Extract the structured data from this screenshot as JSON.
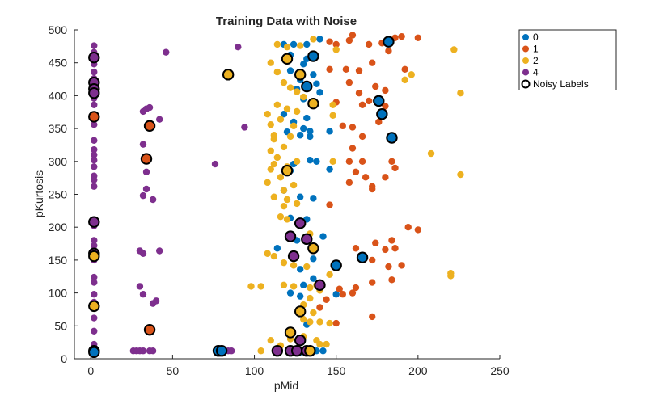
{
  "chart_data": {
    "type": "scatter",
    "title": "Training Data with Noise",
    "xlabel": "pMid",
    "ylabel": "pKurtosis",
    "xlim": [
      -10,
      250
    ],
    "ylim": [
      0,
      500
    ],
    "xticks": [
      0,
      50,
      100,
      150,
      200,
      250
    ],
    "yticks": [
      0,
      50,
      100,
      150,
      200,
      250,
      300,
      350,
      400,
      450,
      500
    ],
    "legend_position": "top-right",
    "grid": false,
    "series": [
      {
        "name": "0",
        "color": "#0072BD",
        "points": [
          [
            118,
            478
          ],
          [
            124,
            478
          ],
          [
            132,
            478
          ],
          [
            140,
            486
          ],
          [
            122,
            462
          ],
          [
            132,
            456
          ],
          [
            130,
            448
          ],
          [
            122,
            438
          ],
          [
            136,
            432
          ],
          [
            128,
            424
          ],
          [
            138,
            418
          ],
          [
            126,
            410
          ],
          [
            140,
            405
          ],
          [
            130,
            395
          ],
          [
            118,
            372
          ],
          [
            132,
            366
          ],
          [
            124,
            360
          ],
          [
            130,
            350
          ],
          [
            134,
            346
          ],
          [
            146,
            346
          ],
          [
            120,
            345
          ],
          [
            128,
            340
          ],
          [
            134,
            338
          ],
          [
            134,
            302
          ],
          [
            138,
            300
          ],
          [
            124,
            296
          ],
          [
            146,
            288
          ],
          [
            122,
            286
          ],
          [
            118,
            256
          ],
          [
            128,
            246
          ],
          [
            136,
            244
          ],
          [
            122,
            214
          ],
          [
            132,
            212
          ],
          [
            142,
            186
          ],
          [
            126,
            180
          ],
          [
            114,
            168
          ],
          [
            136,
            152
          ],
          [
            128,
            136
          ],
          [
            136,
            122
          ],
          [
            130,
            112
          ],
          [
            150,
            98
          ],
          [
            122,
            100
          ],
          [
            128,
            95
          ],
          [
            132,
            52
          ],
          [
            138,
            12
          ],
          [
            142,
            12
          ],
          [
            128,
            10
          ]
        ]
      },
      {
        "name": "1",
        "color": "#D95319",
        "points": [
          [
            160,
            492
          ],
          [
            146,
            482
          ],
          [
            150,
            478
          ],
          [
            158,
            484
          ],
          [
            170,
            478
          ],
          [
            186,
            488
          ],
          [
            178,
            480
          ],
          [
            200,
            488
          ],
          [
            146,
            440
          ],
          [
            156,
            440
          ],
          [
            164,
            438
          ],
          [
            172,
            450
          ],
          [
            190,
            490
          ],
          [
            182,
            468
          ],
          [
            174,
            414
          ],
          [
            180,
            408
          ],
          [
            158,
            420
          ],
          [
            164,
            404
          ],
          [
            170,
            392
          ],
          [
            180,
            384
          ],
          [
            192,
            440
          ],
          [
            166,
            386
          ],
          [
            160,
            352
          ],
          [
            176,
            360
          ],
          [
            166,
            338
          ],
          [
            150,
            390
          ],
          [
            154,
            354
          ],
          [
            160,
            320
          ],
          [
            166,
            300
          ],
          [
            158,
            300
          ],
          [
            162,
            284
          ],
          [
            168,
            276
          ],
          [
            180,
            276
          ],
          [
            186,
            290
          ],
          [
            184,
            300
          ],
          [
            158,
            268
          ],
          [
            172,
            262
          ],
          [
            172,
            258
          ],
          [
            146,
            234
          ],
          [
            200,
            196
          ],
          [
            194,
            200
          ],
          [
            184,
            180
          ],
          [
            174,
            176
          ],
          [
            162,
            168
          ],
          [
            180,
            166
          ],
          [
            186,
            168
          ],
          [
            172,
            150
          ],
          [
            182,
            140
          ],
          [
            190,
            142
          ],
          [
            184,
            120
          ],
          [
            172,
            116
          ],
          [
            162,
            108
          ],
          [
            152,
            106
          ],
          [
            160,
            100
          ],
          [
            154,
            98
          ],
          [
            144,
            90
          ],
          [
            140,
            78
          ],
          [
            172,
            64
          ],
          [
            150,
            54
          ],
          [
            2,
            366
          ]
        ]
      },
      {
        "name": "2",
        "color": "#EDB120",
        "points": [
          [
            114,
            478
          ],
          [
            120,
            474
          ],
          [
            128,
            476
          ],
          [
            136,
            486
          ],
          [
            110,
            450
          ],
          [
            114,
            436
          ],
          [
            118,
            420
          ],
          [
            122,
            412
          ],
          [
            126,
            406
          ],
          [
            130,
            398
          ],
          [
            114,
            386
          ],
          [
            120,
            380
          ],
          [
            126,
            376
          ],
          [
            108,
            372
          ],
          [
            116,
            364
          ],
          [
            110,
            356
          ],
          [
            124,
            354
          ],
          [
            112,
            340
          ],
          [
            122,
            338
          ],
          [
            118,
            322
          ],
          [
            110,
            316
          ],
          [
            114,
            306
          ],
          [
            126,
            300
          ],
          [
            112,
            296
          ],
          [
            120,
            292
          ],
          [
            110,
            288
          ],
          [
            116,
            276
          ],
          [
            108,
            268
          ],
          [
            124,
            264
          ],
          [
            118,
            256
          ],
          [
            112,
            246
          ],
          [
            120,
            242
          ],
          [
            126,
            236
          ],
          [
            118,
            232
          ],
          [
            116,
            216
          ],
          [
            120,
            212
          ],
          [
            134,
            190
          ],
          [
            108,
            160
          ],
          [
            112,
            156
          ],
          [
            118,
            146
          ],
          [
            124,
            142
          ],
          [
            132,
            140
          ],
          [
            104,
            110
          ],
          [
            118,
            112
          ],
          [
            124,
            110
          ],
          [
            134,
            108
          ],
          [
            138,
            112
          ],
          [
            140,
            104
          ],
          [
            146,
            128
          ],
          [
            150,
            140
          ],
          [
            134,
            92
          ],
          [
            130,
            82
          ],
          [
            136,
            70
          ],
          [
            130,
            60
          ],
          [
            134,
            56
          ],
          [
            140,
            56
          ],
          [
            146,
            54
          ],
          [
            110,
            28
          ],
          [
            116,
            20
          ],
          [
            122,
            30
          ],
          [
            130,
            34
          ],
          [
            138,
            28
          ],
          [
            140,
            22
          ],
          [
            144,
            22
          ],
          [
            104,
            12
          ],
          [
            98,
            110
          ],
          [
            148,
            300
          ],
          [
            150,
            470
          ],
          [
            222,
            470
          ],
          [
            226,
            404
          ],
          [
            226,
            280
          ],
          [
            208,
            312
          ],
          [
            220,
            130
          ],
          [
            220,
            126
          ],
          [
            112,
            334
          ],
          [
            148,
            370
          ],
          [
            148,
            386
          ],
          [
            192,
            424
          ],
          [
            196,
            432
          ]
        ]
      },
      {
        "name": "4",
        "color": "#7E2F8E",
        "points": [
          [
            2,
            476
          ],
          [
            2,
            466
          ],
          [
            2,
            456
          ],
          [
            2,
            448
          ],
          [
            2,
            436
          ],
          [
            2,
            426
          ],
          [
            2,
            414
          ],
          [
            2,
            408
          ],
          [
            2,
            402
          ],
          [
            2,
            396
          ],
          [
            2,
            386
          ],
          [
            2,
            364
          ],
          [
            2,
            356
          ],
          [
            2,
            332
          ],
          [
            2,
            318
          ],
          [
            2,
            310
          ],
          [
            2,
            302
          ],
          [
            2,
            292
          ],
          [
            2,
            278
          ],
          [
            2,
            272
          ],
          [
            2,
            262
          ],
          [
            2,
            202
          ],
          [
            2,
            180
          ],
          [
            2,
            172
          ],
          [
            2,
            158
          ],
          [
            2,
            150
          ],
          [
            2,
            124
          ],
          [
            2,
            116
          ],
          [
            2,
            98
          ],
          [
            2,
            86
          ],
          [
            2,
            62
          ],
          [
            2,
            42
          ],
          [
            2,
            22
          ],
          [
            2,
            14
          ],
          [
            2,
            8
          ],
          [
            46,
            466
          ],
          [
            32,
            376
          ],
          [
            34,
            380
          ],
          [
            36,
            382
          ],
          [
            42,
            364
          ],
          [
            32,
            326
          ],
          [
            34,
            284
          ],
          [
            34,
            258
          ],
          [
            32,
            248
          ],
          [
            38,
            242
          ],
          [
            30,
            164
          ],
          [
            32,
            160
          ],
          [
            42,
            164
          ],
          [
            30,
            110
          ],
          [
            32,
            98
          ],
          [
            38,
            84
          ],
          [
            40,
            88
          ],
          [
            26,
            12
          ],
          [
            28,
            12
          ],
          [
            30,
            12
          ],
          [
            32,
            12
          ],
          [
            36,
            12
          ],
          [
            38,
            12
          ],
          [
            76,
            296
          ],
          [
            84,
            12
          ],
          [
            86,
            12
          ],
          [
            90,
            474
          ],
          [
            94,
            352
          ]
        ]
      }
    ],
    "noisy_labels": {
      "name": "Noisy Labels",
      "points": [
        [
          2,
          458
        ],
        [
          2,
          420
        ],
        [
          2,
          410
        ],
        [
          2,
          404
        ],
        [
          2,
          368
        ],
        [
          2,
          208
        ],
        [
          2,
          160
        ],
        [
          2,
          156
        ],
        [
          2,
          80
        ],
        [
          2,
          12
        ],
        [
          2,
          10
        ],
        [
          34,
          304
        ],
        [
          36,
          354
        ],
        [
          36,
          44
        ],
        [
          78,
          12
        ],
        [
          80,
          12
        ],
        [
          84,
          432
        ],
        [
          120,
          456
        ],
        [
          128,
          432
        ],
        [
          132,
          414
        ],
        [
          136,
          388
        ],
        [
          136,
          460
        ],
        [
          120,
          286
        ],
        [
          128,
          206
        ],
        [
          122,
          186
        ],
        [
          132,
          182
        ],
        [
          136,
          168
        ],
        [
          124,
          156
        ],
        [
          140,
          112
        ],
        [
          150,
          142
        ],
        [
          166,
          154
        ],
        [
          176,
          392
        ],
        [
          178,
          372
        ],
        [
          182,
          482
        ],
        [
          184,
          336
        ],
        [
          128,
          72
        ],
        [
          122,
          40
        ],
        [
          128,
          28
        ],
        [
          122,
          12
        ],
        [
          126,
          12
        ],
        [
          132,
          12
        ],
        [
          134,
          12
        ],
        [
          114,
          12
        ]
      ],
      "point_labels": [
        4,
        4,
        4,
        4,
        1,
        4,
        4,
        2,
        2,
        0,
        0,
        1,
        1,
        1,
        0,
        0,
        2,
        2,
        2,
        0,
        2,
        0,
        2,
        4,
        4,
        4,
        2,
        4,
        4,
        0,
        0,
        0,
        0,
        0,
        0,
        2,
        2,
        4,
        4,
        4,
        4,
        2,
        4
      ]
    }
  }
}
